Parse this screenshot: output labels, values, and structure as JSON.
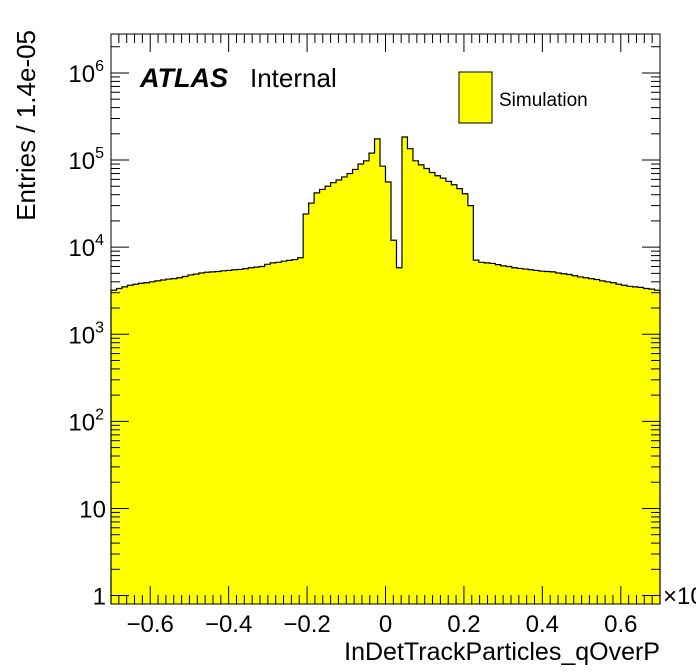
{
  "chart_data": {
    "type": "histogram",
    "title": "",
    "xlabel": "InDetTrackParticles_qOverP",
    "ylabel": "Entries / 1.4e-05",
    "x_multiplier_label": "×10",
    "y_scale": "log",
    "xlim": [
      -0.7,
      0.7
    ],
    "ylim": [
      0.8,
      2800000
    ],
    "x_ticks": [
      "−0.6",
      "−0.4",
      "−0.2",
      "0",
      "0.2",
      "0.4",
      "0.6"
    ],
    "x_tick_values": [
      -0.6,
      -0.4,
      -0.2,
      0,
      0.2,
      0.4,
      0.6
    ],
    "y_ticks": [
      {
        "value": 1,
        "base": "1",
        "exp": ""
      },
      {
        "value": 10,
        "base": "10",
        "exp": ""
      },
      {
        "value": 100,
        "base": "10",
        "exp": "2"
      },
      {
        "value": 1000,
        "base": "10",
        "exp": "3"
      },
      {
        "value": 10000,
        "base": "10",
        "exp": "4"
      },
      {
        "value": 100000,
        "base": "10",
        "exp": "5"
      },
      {
        "value": 1000000,
        "base": "10",
        "exp": "6"
      }
    ],
    "grid": false,
    "legend": {
      "position": "top-right",
      "entries": [
        {
          "label": "Simulation",
          "color": "#ffff00"
        }
      ]
    },
    "fill_color": "#ffff00",
    "line_color": "#000000",
    "bin_edges_start": -0.7,
    "bin_width": 0.014,
    "series": [
      {
        "name": "Simulation",
        "values": [
          3200,
          3350,
          3500,
          3650,
          3750,
          3850,
          3900,
          4000,
          4100,
          4200,
          4300,
          4350,
          4450,
          4600,
          4800,
          4900,
          5050,
          5150,
          5200,
          5250,
          5350,
          5400,
          5500,
          5550,
          5650,
          5800,
          5900,
          6000,
          6350,
          6600,
          6700,
          6900,
          7050,
          7200,
          7550,
          24000,
          32000,
          42000,
          46000,
          50000,
          55000,
          59000,
          64000,
          70000,
          78000,
          90000,
          98000,
          120000,
          175000,
          85000,
          56000,
          12000,
          5800,
          184000,
          135000,
          98000,
          88000,
          80000,
          72000,
          66000,
          62000,
          57000,
          52000,
          47000,
          41000,
          30000,
          7100,
          6700,
          6600,
          6500,
          6300,
          6100,
          6000,
          5800,
          5700,
          5600,
          5500,
          5400,
          5300,
          5250,
          5200,
          5050,
          4950,
          4850,
          4700,
          4550,
          4450,
          4350,
          4250,
          4100,
          4000,
          3900,
          3750,
          3650,
          3550,
          3500,
          3450,
          3350,
          3300,
          3200
        ]
      }
    ]
  },
  "atlas_label": "ATLAS",
  "atlas_status": "Internal"
}
